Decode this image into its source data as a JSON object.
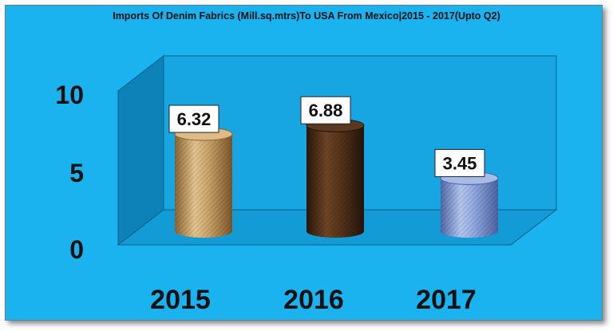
{
  "chart_data": {
    "type": "bar",
    "title": "Imports Of Denim Fabrics (Mill.sq.mtrs)To USA From Mexico|2015 - 2017(Upto Q2)",
    "categories": [
      "2015",
      "2016",
      "2017"
    ],
    "values": [
      6.32,
      6.88,
      3.45
    ],
    "value_labels": [
      "6.32",
      "6.88",
      "3.45"
    ],
    "yticks": [
      0,
      5,
      10
    ],
    "ytick_labels": [
      "0",
      "5",
      "10"
    ],
    "ylim": [
      0,
      10
    ],
    "xlabel": "",
    "ylabel": "",
    "grid": false,
    "legend": "none",
    "colors": {
      "background": "#1ab2ef",
      "back_wall": "#16a3df",
      "side_wall": "#0d7eb3",
      "floor": "#159bd7",
      "bars": [
        "#c49a5e",
        "#4a2b17",
        "#7d98d1"
      ]
    }
  }
}
